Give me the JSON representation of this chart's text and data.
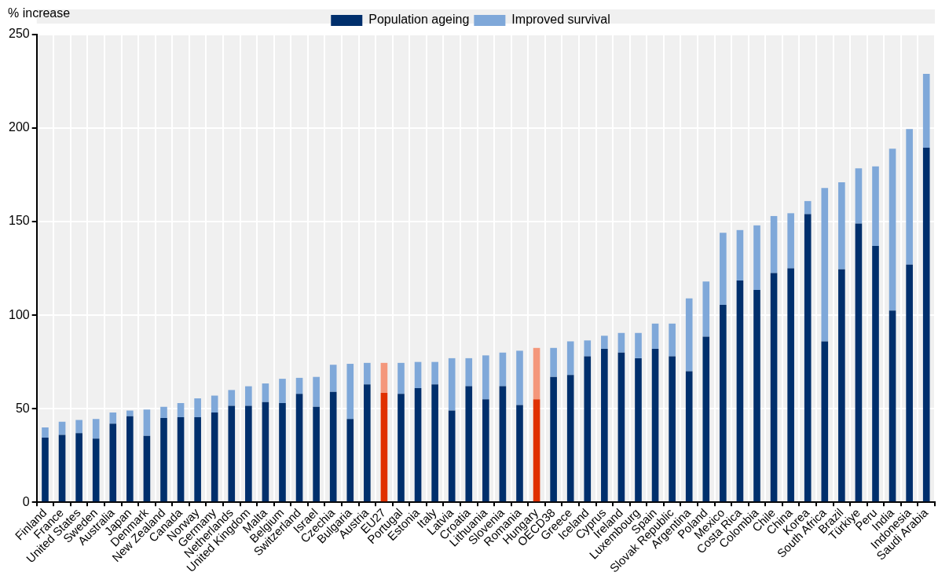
{
  "chart_data": {
    "type": "bar",
    "stacked": true,
    "ylabel": "% increase",
    "legend": "top",
    "grid": true,
    "categories": [
      "Finland",
      "France",
      "United States",
      "Sweden",
      "Australia",
      "Japan",
      "Denmark",
      "New Zealand",
      "Canada",
      "Norway",
      "Germany",
      "Netherlands",
      "United Kingdom",
      "Malta",
      "Belgium",
      "Switzerland",
      "Israel",
      "Czechia",
      "Bulgaria",
      "Austria",
      "EU27",
      "Portugal",
      "Estonia",
      "Italy",
      "Latvia",
      "Croatia",
      "Lithuania",
      "Slovenia",
      "Romania",
      "Hungary",
      "OECD38",
      "Greece",
      "Iceland",
      "Cyprus",
      "Ireland",
      "Luxembourg",
      "Spain",
      "Slovak Republic",
      "Argentina",
      "Poland",
      "Mexico",
      "Costa Rica",
      "Colombia",
      "Chile",
      "China",
      "Korea",
      "South Africa",
      "Brazil",
      "Türkiye",
      "Peru",
      "India",
      "Indonesia",
      "Saudi Arabia"
    ],
    "series": [
      {
        "name": "Population ageing",
        "color": "#002f6c",
        "colors": [
          "#002f6c",
          "#002f6c",
          "#002f6c",
          "#002f6c",
          "#002f6c",
          "#002f6c",
          "#002f6c",
          "#002f6c",
          "#002f6c",
          "#002f6c",
          "#002f6c",
          "#002f6c",
          "#002f6c",
          "#002f6c",
          "#002f6c",
          "#002f6c",
          "#002f6c",
          "#002f6c",
          "#002f6c",
          "#002f6c",
          "#e03000",
          "#002f6c",
          "#002f6c",
          "#002f6c",
          "#002f6c",
          "#002f6c",
          "#002f6c",
          "#002f6c",
          "#002f6c",
          "#e03000",
          "#002f6c",
          "#002f6c",
          "#002f6c",
          "#002f6c",
          "#002f6c",
          "#002f6c",
          "#002f6c",
          "#002f6c",
          "#002f6c",
          "#002f6c",
          "#002f6c",
          "#002f6c",
          "#002f6c",
          "#002f6c",
          "#002f6c",
          "#002f6c",
          "#002f6c",
          "#002f6c",
          "#002f6c",
          "#002f6c",
          "#002f6c",
          "#002f6c",
          "#002f6c"
        ],
        "values": [
          34.5,
          36,
          37,
          34,
          42,
          46,
          35.5,
          45,
          45.5,
          45.5,
          48,
          51.5,
          51.5,
          53.5,
          53,
          58,
          51,
          59,
          44.5,
          63,
          58.5,
          58,
          61,
          63,
          49,
          62,
          55,
          62,
          52,
          55,
          67,
          68,
          78,
          82,
          80,
          77,
          82,
          78,
          70,
          88.5,
          105.5,
          118.5,
          113.5,
          122.5,
          125,
          154,
          86,
          124.5,
          149,
          137,
          102.5,
          127,
          189.5
        ]
      },
      {
        "name": "Improved survival",
        "color": "#7fa8d9",
        "colors": [
          "#7fa8d9",
          "#7fa8d9",
          "#7fa8d9",
          "#7fa8d9",
          "#7fa8d9",
          "#7fa8d9",
          "#7fa8d9",
          "#7fa8d9",
          "#7fa8d9",
          "#7fa8d9",
          "#7fa8d9",
          "#7fa8d9",
          "#7fa8d9",
          "#7fa8d9",
          "#7fa8d9",
          "#7fa8d9",
          "#7fa8d9",
          "#7fa8d9",
          "#7fa8d9",
          "#7fa8d9",
          "#f4977b",
          "#7fa8d9",
          "#7fa8d9",
          "#7fa8d9",
          "#7fa8d9",
          "#7fa8d9",
          "#7fa8d9",
          "#7fa8d9",
          "#7fa8d9",
          "#f4977b",
          "#7fa8d9",
          "#7fa8d9",
          "#7fa8d9",
          "#7fa8d9",
          "#7fa8d9",
          "#7fa8d9",
          "#7fa8d9",
          "#7fa8d9",
          "#7fa8d9",
          "#7fa8d9",
          "#7fa8d9",
          "#7fa8d9",
          "#7fa8d9",
          "#7fa8d9",
          "#7fa8d9",
          "#7fa8d9",
          "#7fa8d9",
          "#7fa8d9",
          "#7fa8d9",
          "#7fa8d9",
          "#7fa8d9",
          "#7fa8d9",
          "#7fa8d9"
        ],
        "values": [
          5.5,
          7,
          7,
          10.5,
          6,
          3,
          14,
          6,
          7.5,
          10,
          9,
          8.5,
          10.5,
          10,
          13,
          8.5,
          16,
          14.5,
          29.5,
          11.5,
          16,
          16.5,
          14,
          12,
          28,
          15,
          23.5,
          18,
          29,
          27.5,
          15.5,
          18,
          8.5,
          7,
          10.5,
          13.5,
          13.5,
          17.5,
          39,
          29.5,
          38.5,
          27,
          34.5,
          30.5,
          29.5,
          7,
          82,
          46.5,
          29.5,
          42.5,
          86.5,
          72.5,
          39.5
        ]
      }
    ],
    "ylim": [
      0,
      250
    ],
    "yticks": [
      0,
      50,
      100,
      150,
      200,
      250
    ]
  }
}
